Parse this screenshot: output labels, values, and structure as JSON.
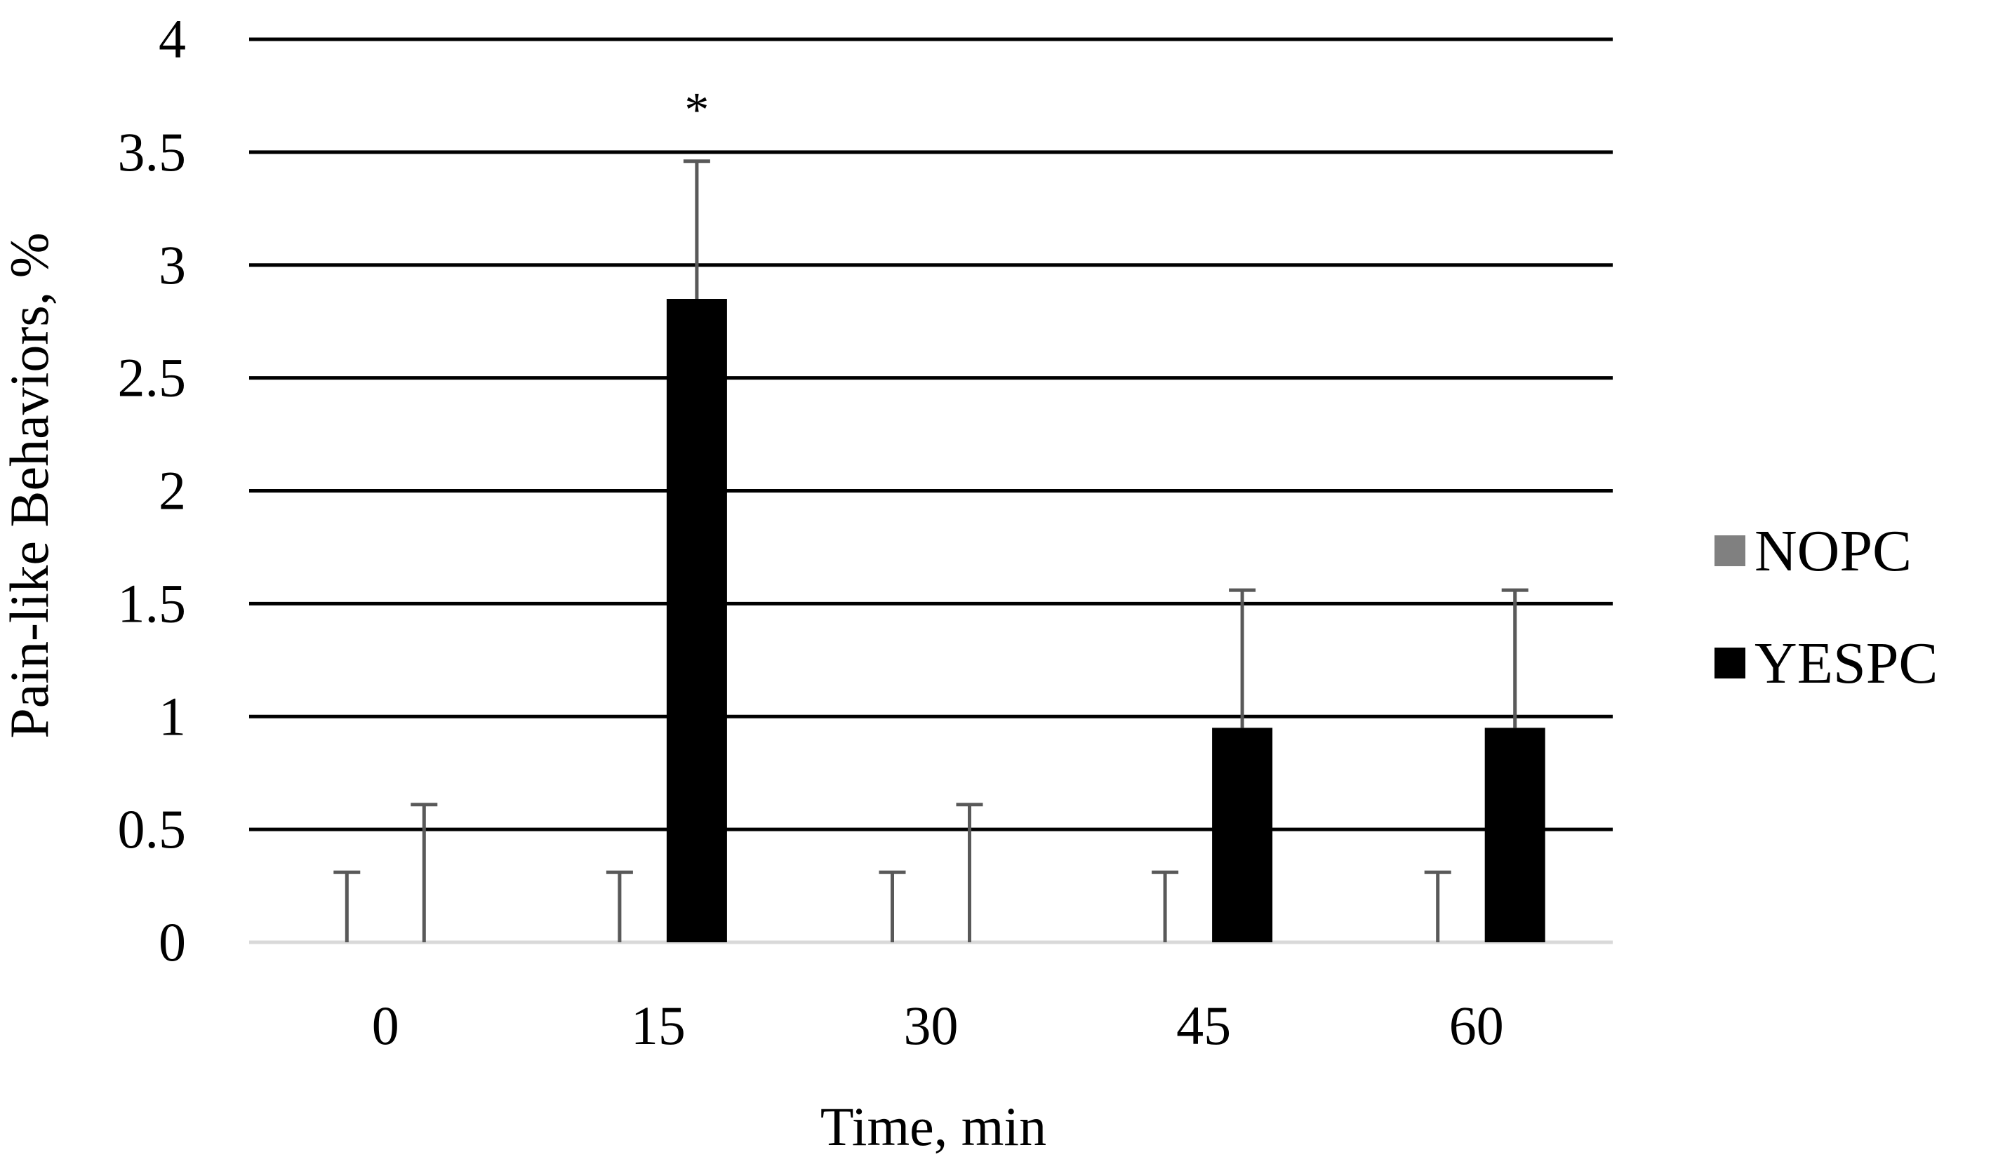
{
  "chart_data": {
    "type": "bar",
    "title": "",
    "xlabel": "Time, min",
    "ylabel": "Pain-like Behaviors, %",
    "categories": [
      "0",
      "15",
      "30",
      "45",
      "60"
    ],
    "ylim": [
      0,
      4
    ],
    "yticks": [
      "0",
      "0.5",
      "1",
      "1.5",
      "2",
      "2.5",
      "3",
      "3.5",
      "4"
    ],
    "grid": true,
    "legend_position": "right",
    "series": [
      {
        "name": "NOPC",
        "color": "#808080",
        "values": [
          0,
          0,
          0,
          0,
          0
        ],
        "error_upper": [
          0.31,
          0.31,
          0.31,
          0.31,
          0.31
        ]
      },
      {
        "name": "YESPC",
        "color": "#000000",
        "values": [
          0,
          2.85,
          0,
          0.95,
          0.95
        ],
        "error_upper": [
          0.61,
          0.61,
          0.61,
          0.61,
          0.61
        ]
      }
    ],
    "annotations": [
      {
        "text": "*",
        "category": "15",
        "series": "YESPC"
      }
    ],
    "colors": {
      "gridline": "#000000",
      "baseline": "#d9d9d9",
      "error_bar": "#595959"
    }
  }
}
